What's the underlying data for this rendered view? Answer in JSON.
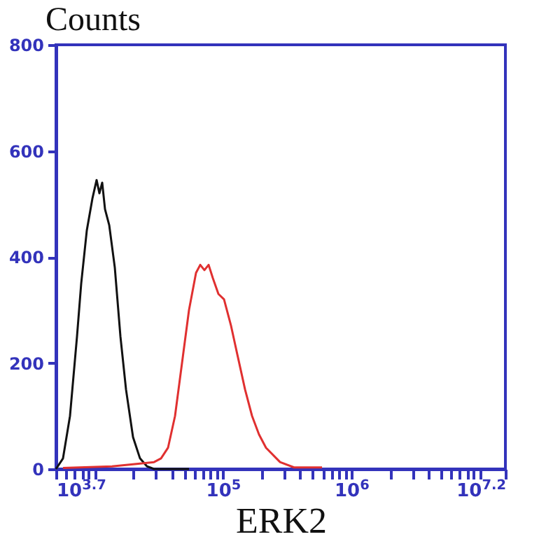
{
  "chart_data": {
    "type": "line",
    "ylabel": "Counts",
    "xlabel": "ERK2",
    "log": "x",
    "grid": false,
    "legend": false,
    "marker": "none",
    "line_style": "solid",
    "xlim": [
      5012,
      15848932
    ],
    "ylim": [
      0,
      800
    ],
    "yticks": [
      0,
      200,
      400,
      600,
      800
    ],
    "xticks": [
      {
        "value": 5012,
        "label": "10$^{3.7}$"
      },
      {
        "value": 6000,
        "label": null
      },
      {
        "value": 7000,
        "label": null
      },
      {
        "value": 8000,
        "label": null
      },
      {
        "value": 9000,
        "label": null
      },
      {
        "value": 10000,
        "label": null
      },
      {
        "value": 20000,
        "label": null
      },
      {
        "value": 30000,
        "label": null
      },
      {
        "value": 40000,
        "label": null
      },
      {
        "value": 50000,
        "label": null
      },
      {
        "value": 60000,
        "label": null
      },
      {
        "value": 70000,
        "label": null
      },
      {
        "value": 80000,
        "label": null
      },
      {
        "value": 90000,
        "label": null
      },
      {
        "value": 100000,
        "label": "10$^{5}$"
      },
      {
        "value": 200000,
        "label": null
      },
      {
        "value": 300000,
        "label": null
      },
      {
        "value": 400000,
        "label": null
      },
      {
        "value": 500000,
        "label": null
      },
      {
        "value": 600000,
        "label": null
      },
      {
        "value": 700000,
        "label": null
      },
      {
        "value": 800000,
        "label": null
      },
      {
        "value": 900000,
        "label": null
      },
      {
        "value": 1000000,
        "label": "10$^{6}$"
      },
      {
        "value": 2000000,
        "label": null
      },
      {
        "value": 3000000,
        "label": null
      },
      {
        "value": 4000000,
        "label": null
      },
      {
        "value": 5000000,
        "label": null
      },
      {
        "value": 6000000,
        "label": null
      },
      {
        "value": 7000000,
        "label": null
      },
      {
        "value": 8000000,
        "label": null
      },
      {
        "value": 9000000,
        "label": null
      },
      {
        "value": 10000000,
        "label": null
      },
      {
        "value": 15848932,
        "label": "10$^{7.2}$"
      }
    ],
    "series": [
      {
        "color": "#111111",
        "x": [
          5012,
          5683,
          6442,
          7305,
          7877,
          8709,
          9627,
          10380,
          10917,
          11478,
          12071,
          13015,
          14388,
          15914,
          17591,
          19948,
          22612,
          25630,
          29070,
          54450
        ],
        "values": [
          0,
          20,
          100,
          250,
          350,
          450,
          510,
          545,
          520,
          540,
          490,
          460,
          380,
          250,
          150,
          60,
          20,
          5,
          0,
          0
        ]
      },
      {
        "color": "#e03030",
        "x": [
          5683,
          13685,
          29070,
          32950,
          37360,
          42370,
          48030,
          54450,
          61740,
          66580,
          71770,
          77390,
          83450,
          92270,
          102000,
          115700,
          131100,
          148700,
          168600,
          191100,
          216700,
          278600,
          358100,
          591600
        ],
        "values": [
          2,
          5,
          13,
          20,
          40,
          100,
          200,
          300,
          370,
          385,
          375,
          385,
          360,
          330,
          320,
          270,
          210,
          150,
          100,
          65,
          40,
          13,
          3,
          3
        ]
      }
    ]
  }
}
